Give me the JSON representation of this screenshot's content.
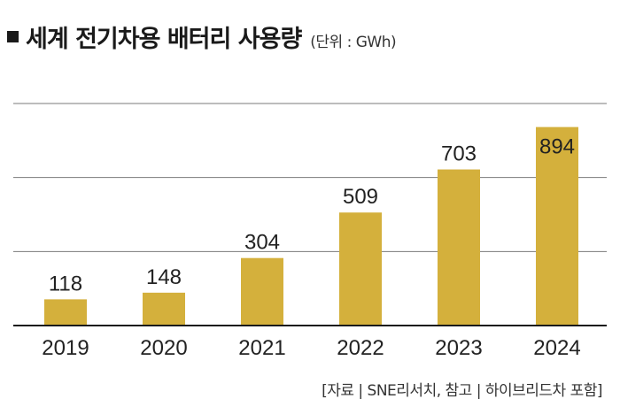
{
  "header": {
    "title": "세계 전기차용 배터리 사용량",
    "unit": "(단위 : GWh)"
  },
  "footer": {
    "source": "[자료 | SNE리서치, 참고 | 하이브리드차 포함]"
  },
  "colors": {
    "bar": "#d4b03c",
    "grid": "#7a7a7a",
    "text": "#222222"
  },
  "chart_data": {
    "type": "bar",
    "categories": [
      "2019",
      "2020",
      "2021",
      "2022",
      "2023",
      "2024"
    ],
    "values": [
      118,
      148,
      304,
      509,
      703,
      894
    ],
    "data_labels": [
      "118",
      "148",
      "304",
      "509",
      "703",
      "894"
    ],
    "title": "세계 전기차용 배터리 사용량",
    "ylabel": "(단위 : GWh)",
    "ylim": [
      0,
      1000
    ],
    "grid": true,
    "legend": "none"
  }
}
